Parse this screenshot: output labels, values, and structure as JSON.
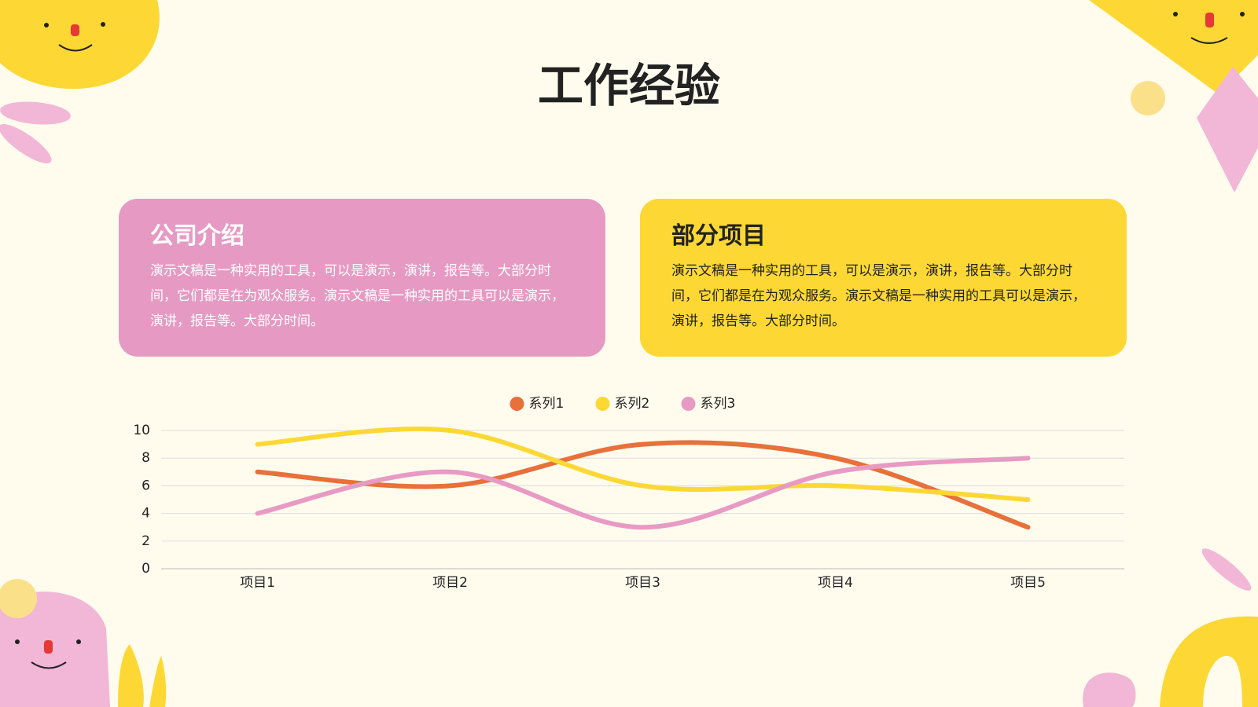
{
  "title": "工作经验",
  "cards": [
    {
      "heading": "公司介绍",
      "body": "演示文稿是一种实用的工具，可以是演示，演讲，报告等。大部分时间，它们都是在为观众服务。演示文稿是一种实用的工具可以是演示，演讲，报告等。大部分时间。"
    },
    {
      "heading": "部分项目",
      "body": "演示文稿是一种实用的工具，可以是演示，演讲，报告等。大部分时间，它们都是在为观众服务。演示文稿是一种实用的工具可以是演示，演讲，报告等。大部分时间。"
    }
  ],
  "chart_data": {
    "type": "line",
    "categories": [
      "项目1",
      "项目2",
      "项目3",
      "项目4",
      "项目5"
    ],
    "series": [
      {
        "name": "系列1",
        "color": "#e8703a",
        "values": [
          7,
          6,
          9,
          8,
          3
        ]
      },
      {
        "name": "系列2",
        "color": "#fdd835",
        "values": [
          9,
          10,
          6,
          6,
          5
        ]
      },
      {
        "name": "系列3",
        "color": "#e89ac4",
        "values": [
          4,
          7,
          3,
          7,
          8
        ]
      }
    ],
    "ylim": [
      0,
      10
    ],
    "yticks": [
      0,
      2,
      4,
      6,
      8,
      10
    ],
    "grid": true,
    "smooth": true,
    "legend": "top"
  }
}
